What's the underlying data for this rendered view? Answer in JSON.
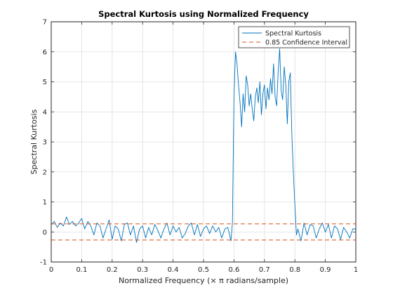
{
  "chart_data": {
    "type": "line",
    "title": "Spectral Kurtosis using Normalized Frequency",
    "xlabel": "Normalized Frequency (× π radians/sample)",
    "ylabel": "Spectral Kurtosis",
    "xlim": [
      0,
      1
    ],
    "ylim": [
      -1,
      7
    ],
    "xticks": [
      0,
      0.1,
      0.2,
      0.3,
      0.4,
      0.5,
      0.6,
      0.7,
      0.8,
      0.9,
      1
    ],
    "xtick_labels": [
      "0",
      "0.1",
      "0.2",
      "0.3",
      "0.4",
      "0.5",
      "0.6",
      "0.7",
      "0.8",
      "0.9",
      "1"
    ],
    "yticks": [
      -1,
      0,
      1,
      2,
      3,
      4,
      5,
      6,
      7
    ],
    "ytick_labels": [
      "-1",
      "0",
      "1",
      "2",
      "3",
      "4",
      "5",
      "6",
      "7"
    ],
    "grid": true,
    "legend_position": "top-right",
    "series": [
      {
        "name": "Spectral Kurtosis",
        "color": "#0072bd",
        "style": "solid",
        "x": [
          0,
          0.01,
          0.02,
          0.03,
          0.04,
          0.05,
          0.06,
          0.07,
          0.08,
          0.09,
          0.1,
          0.11,
          0.12,
          0.13,
          0.14,
          0.15,
          0.16,
          0.17,
          0.18,
          0.19,
          0.2,
          0.21,
          0.22,
          0.23,
          0.24,
          0.25,
          0.26,
          0.27,
          0.28,
          0.29,
          0.3,
          0.31,
          0.32,
          0.33,
          0.34,
          0.35,
          0.36,
          0.37,
          0.38,
          0.39,
          0.4,
          0.41,
          0.42,
          0.43,
          0.44,
          0.45,
          0.46,
          0.47,
          0.48,
          0.49,
          0.5,
          0.51,
          0.52,
          0.53,
          0.54,
          0.55,
          0.56,
          0.57,
          0.58,
          0.59,
          0.595,
          0.6,
          0.605,
          0.61,
          0.615,
          0.62,
          0.625,
          0.63,
          0.635,
          0.64,
          0.645,
          0.65,
          0.655,
          0.66,
          0.665,
          0.67,
          0.675,
          0.68,
          0.685,
          0.69,
          0.695,
          0.7,
          0.705,
          0.71,
          0.715,
          0.72,
          0.725,
          0.73,
          0.735,
          0.74,
          0.745,
          0.75,
          0.755,
          0.76,
          0.765,
          0.77,
          0.775,
          0.78,
          0.785,
          0.79,
          0.795,
          0.8,
          0.805,
          0.81,
          0.82,
          0.83,
          0.84,
          0.85,
          0.86,
          0.87,
          0.88,
          0.89,
          0.9,
          0.91,
          0.92,
          0.93,
          0.94,
          0.95,
          0.96,
          0.97,
          0.98,
          0.99,
          1
        ],
        "y": [
          0.25,
          0.35,
          0.15,
          0.3,
          0.2,
          0.5,
          0.25,
          0.35,
          0.2,
          0.3,
          0.45,
          0.1,
          0.35,
          0.2,
          -0.1,
          0.3,
          0.2,
          -0.2,
          0.1,
          0.4,
          -0.25,
          0.2,
          0.1,
          -0.3,
          0.25,
          0.3,
          -0.1,
          0.2,
          -0.35,
          0.1,
          0.2,
          -0.2,
          0.15,
          -0.1,
          0.25,
          0.05,
          -0.2,
          0.1,
          0.3,
          -0.1,
          0.2,
          0.0,
          0.15,
          -0.2,
          -0.05,
          0.2,
          0.3,
          -0.1,
          0.25,
          -0.15,
          0.1,
          0.2,
          -0.05,
          0.2,
          0.0,
          0.15,
          -0.2,
          0.1,
          0.15,
          -0.3,
          0.3,
          4.5,
          6.0,
          5.6,
          4.9,
          4.3,
          3.5,
          4.6,
          4.0,
          5.2,
          4.9,
          4.2,
          4.6,
          4.1,
          3.7,
          4.5,
          4.8,
          4.3,
          5.0,
          3.9,
          4.6,
          4.9,
          4.1,
          4.8,
          4.4,
          5.1,
          4.6,
          5.6,
          4.5,
          4.2,
          5.3,
          6.1,
          4.7,
          4.4,
          5.5,
          4.9,
          3.6,
          5.0,
          5.3,
          3.2,
          2.0,
          0.9,
          -0.1,
          0.1,
          -0.3,
          0.3,
          -0.1,
          0.25,
          0.2,
          -0.2,
          0.1,
          0.3,
          0.0,
          0.25,
          -0.2,
          0.2,
          0.1,
          -0.25,
          0.15,
          0.0,
          -0.2,
          0.1,
          0.1
        ]
      },
      {
        "name": "0.85 Confidence Interval",
        "color": "#d95319",
        "style": "dashed",
        "x": [
          0,
          1
        ],
        "y": [
          0.27,
          0.27
        ]
      },
      {
        "name": "",
        "color": "#d95319",
        "style": "dashed",
        "x": [
          0,
          1
        ],
        "y": [
          -0.27,
          -0.27
        ]
      }
    ]
  }
}
